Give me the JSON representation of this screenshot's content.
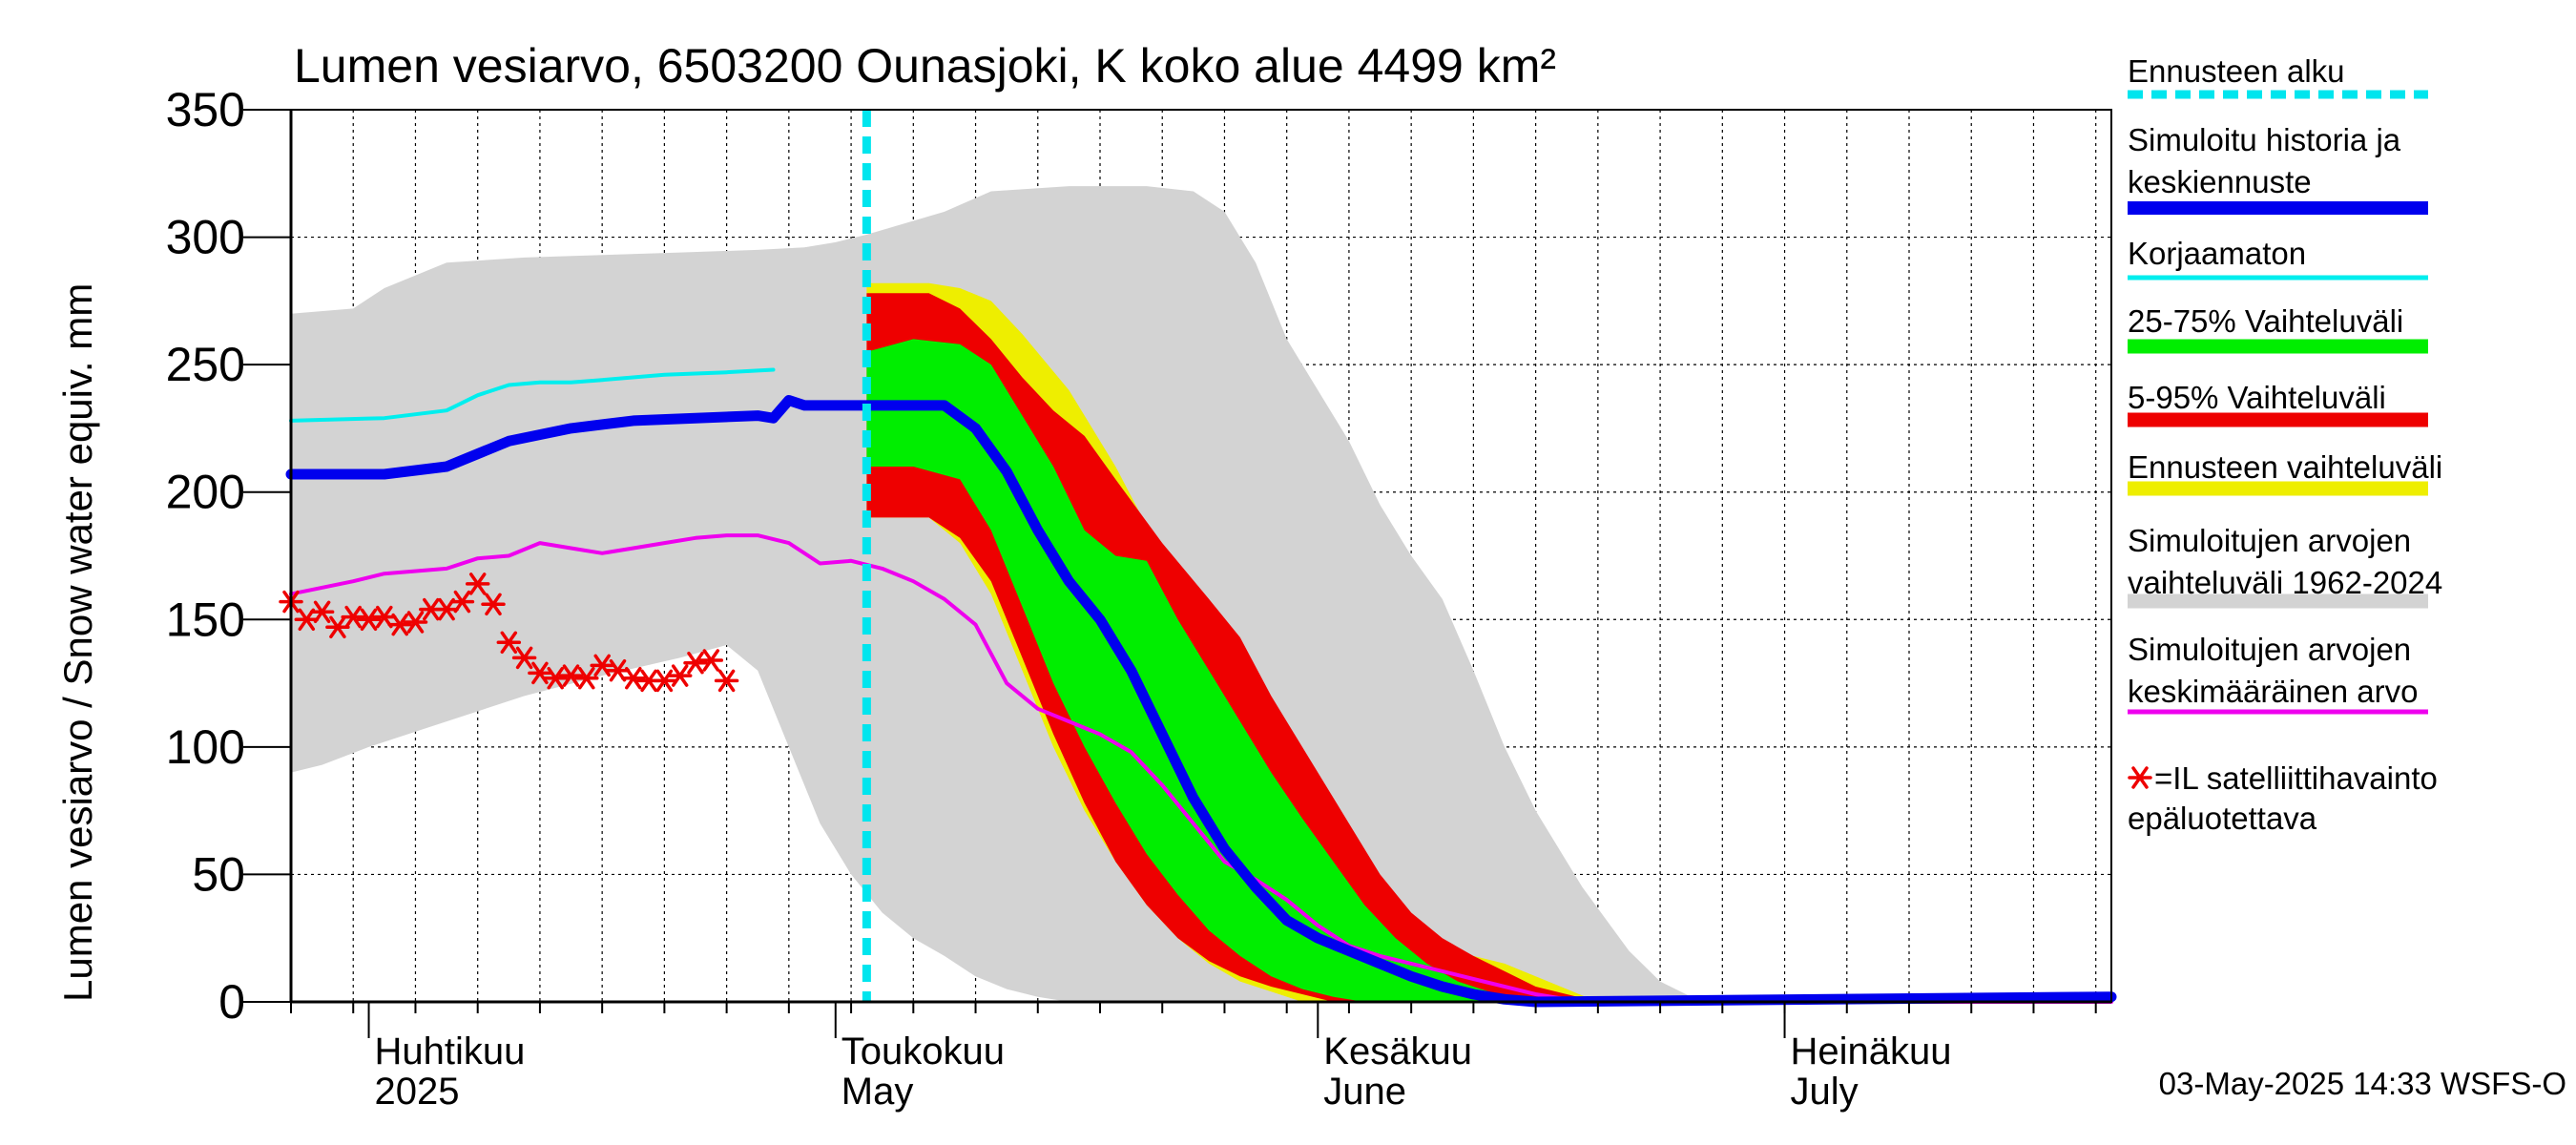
{
  "chart_data": {
    "type": "area",
    "title": "Lumen vesiarvo, 6503200 Ounasjoki, K koko alue 4499 km²",
    "ylabel": "Lumen vesiarvo / Snow water equiv.    mm",
    "ylim": [
      0,
      350
    ],
    "yticks": [
      0,
      50,
      100,
      150,
      200,
      250,
      300,
      350
    ],
    "xlim": [
      0,
      117
    ],
    "x_unit": "days since 2025-03-27",
    "grid": true,
    "month_labels": [
      {
        "x": 5,
        "fi": "Huhtikuu",
        "en": "2025"
      },
      {
        "x": 35,
        "fi": "Toukokuu",
        "en": "May"
      },
      {
        "x": 66,
        "fi": "Kesäkuu",
        "en": "June"
      },
      {
        "x": 96,
        "fi": "Heinäkuu",
        "en": "July"
      }
    ],
    "month_boundaries": [
      5,
      35,
      66,
      96
    ],
    "forecast_start": 37,
    "timestamp": "03-May-2025 14:33 WSFS-O",
    "colors": {
      "forecast_start": "#00e5ee",
      "simulated": "#0000ee",
      "uncorrected": "#00eeee",
      "p25_75": "#00ee00",
      "p5_95": "#ee0000",
      "forecast_range": "#eeee00",
      "historical_range": "#d3d3d3",
      "historical_mean": "#ee00ee",
      "satellite": "#ee0000"
    },
    "legend": [
      {
        "key": "forecast_start",
        "label": [
          "Ennusteen alku"
        ],
        "style": "dashed"
      },
      {
        "key": "simulated",
        "label": [
          "Simuloitu historia ja",
          "keskiennuste"
        ],
        "style": "thick"
      },
      {
        "key": "uncorrected",
        "label": [
          "Korjaamaton"
        ],
        "style": "thin"
      },
      {
        "key": "p25_75",
        "label": [
          "25-75% Vaihteluväli"
        ],
        "style": "band"
      },
      {
        "key": "p5_95",
        "label": [
          "5-95% Vaihteluväli"
        ],
        "style": "band"
      },
      {
        "key": "forecast_range",
        "label": [
          "Ennusteen vaihteluväli"
        ],
        "style": "band"
      },
      {
        "key": "historical_range",
        "label": [
          "Simuloitujen arvojen",
          "vaihteluväli 1962-2024"
        ],
        "style": "band"
      },
      {
        "key": "historical_mean",
        "label": [
          "Simuloitujen arvojen",
          "keskimääräinen arvo"
        ],
        "style": "thin"
      },
      {
        "key": "satellite",
        "label": [
          "=IL satelliittihavainto",
          "epäluotettava"
        ],
        "style": "marker"
      }
    ],
    "series": {
      "historical_range": {
        "upper": [
          [
            0,
            270
          ],
          [
            4,
            272
          ],
          [
            6,
            280
          ],
          [
            10,
            290
          ],
          [
            15,
            292
          ],
          [
            20,
            293
          ],
          [
            25,
            294
          ],
          [
            30,
            295
          ],
          [
            33,
            296
          ],
          [
            35,
            298
          ],
          [
            37,
            301
          ],
          [
            42,
            310
          ],
          [
            45,
            318
          ],
          [
            50,
            320
          ],
          [
            55,
            320
          ],
          [
            58,
            318
          ],
          [
            60,
            310
          ],
          [
            62,
            290
          ],
          [
            64,
            260
          ],
          [
            66,
            240
          ],
          [
            68,
            220
          ],
          [
            70,
            195
          ],
          [
            72,
            175
          ],
          [
            74,
            158
          ],
          [
            76,
            130
          ],
          [
            78,
            100
          ],
          [
            80,
            75
          ],
          [
            83,
            45
          ],
          [
            86,
            20
          ],
          [
            88,
            8
          ],
          [
            90,
            2
          ],
          [
            92,
            0
          ],
          [
            117,
            0
          ]
        ],
        "lower": [
          [
            0,
            90
          ],
          [
            2,
            93
          ],
          [
            5,
            100
          ],
          [
            10,
            110
          ],
          [
            15,
            120
          ],
          [
            20,
            128
          ],
          [
            25,
            135
          ],
          [
            28,
            140
          ],
          [
            30,
            130
          ],
          [
            32,
            100
          ],
          [
            34,
            70
          ],
          [
            36,
            50
          ],
          [
            38,
            35
          ],
          [
            40,
            25
          ],
          [
            42,
            18
          ],
          [
            44,
            10
          ],
          [
            46,
            5
          ],
          [
            48,
            2
          ],
          [
            50,
            0
          ],
          [
            117,
            0
          ]
        ]
      },
      "forecast_range": {
        "upper": [
          [
            37,
            282
          ],
          [
            41,
            282
          ],
          [
            43,
            280
          ],
          [
            45,
            275
          ],
          [
            47,
            262
          ],
          [
            50,
            240
          ],
          [
            53,
            210
          ],
          [
            56,
            175
          ],
          [
            58,
            145
          ],
          [
            60,
            125
          ],
          [
            62,
            108
          ],
          [
            64,
            90
          ],
          [
            66,
            72
          ],
          [
            68,
            50
          ],
          [
            70,
            35
          ],
          [
            72,
            28
          ],
          [
            74,
            22
          ],
          [
            76,
            18
          ],
          [
            78,
            15
          ],
          [
            80,
            10
          ],
          [
            82,
            5
          ],
          [
            84,
            0
          ],
          [
            117,
            0
          ]
        ],
        "lower": [
          [
            37,
            190
          ],
          [
            41,
            190
          ],
          [
            43,
            180
          ],
          [
            45,
            160
          ],
          [
            47,
            130
          ],
          [
            49,
            100
          ],
          [
            51,
            75
          ],
          [
            53,
            55
          ],
          [
            55,
            38
          ],
          [
            57,
            25
          ],
          [
            59,
            15
          ],
          [
            61,
            8
          ],
          [
            63,
            4
          ],
          [
            65,
            0
          ],
          [
            117,
            0
          ]
        ]
      },
      "p5_95": {
        "upper": [
          [
            37,
            278
          ],
          [
            41,
            278
          ],
          [
            43,
            272
          ],
          [
            45,
            260
          ],
          [
            47,
            245
          ],
          [
            49,
            232
          ],
          [
            51,
            222
          ],
          [
            53,
            205
          ],
          [
            56,
            180
          ],
          [
            59,
            158
          ],
          [
            61,
            143
          ],
          [
            63,
            120
          ],
          [
            65,
            100
          ],
          [
            67,
            80
          ],
          [
            68,
            70
          ],
          [
            70,
            50
          ],
          [
            72,
            35
          ],
          [
            74,
            25
          ],
          [
            76,
            18
          ],
          [
            78,
            12
          ],
          [
            80,
            6
          ],
          [
            82,
            3
          ],
          [
            84,
            0
          ],
          [
            117,
            0
          ]
        ],
        "lower": [
          [
            37,
            190
          ],
          [
            41,
            190
          ],
          [
            43,
            182
          ],
          [
            45,
            165
          ],
          [
            47,
            135
          ],
          [
            49,
            105
          ],
          [
            51,
            78
          ],
          [
            53,
            55
          ],
          [
            55,
            38
          ],
          [
            57,
            25
          ],
          [
            59,
            16
          ],
          [
            61,
            10
          ],
          [
            63,
            6
          ],
          [
            65,
            3
          ],
          [
            67,
            0
          ],
          [
            117,
            0
          ]
        ]
      },
      "p25_75": {
        "upper": [
          [
            37,
            255
          ],
          [
            40,
            260
          ],
          [
            43,
            258
          ],
          [
            45,
            250
          ],
          [
            47,
            230
          ],
          [
            49,
            210
          ],
          [
            51,
            185
          ],
          [
            53,
            175
          ],
          [
            55,
            173
          ],
          [
            57,
            150
          ],
          [
            59,
            130
          ],
          [
            61,
            110
          ],
          [
            63,
            90
          ],
          [
            65,
            72
          ],
          [
            67,
            55
          ],
          [
            69,
            38
          ],
          [
            71,
            25
          ],
          [
            73,
            15
          ],
          [
            75,
            8
          ],
          [
            77,
            4
          ],
          [
            79,
            0
          ],
          [
            117,
            0
          ]
        ],
        "lower": [
          [
            37,
            210
          ],
          [
            40,
            210
          ],
          [
            43,
            205
          ],
          [
            45,
            185
          ],
          [
            47,
            155
          ],
          [
            49,
            125
          ],
          [
            51,
            100
          ],
          [
            53,
            78
          ],
          [
            55,
            58
          ],
          [
            57,
            42
          ],
          [
            59,
            28
          ],
          [
            61,
            18
          ],
          [
            63,
            10
          ],
          [
            65,
            5
          ],
          [
            67,
            2
          ],
          [
            69,
            0
          ],
          [
            117,
            0
          ]
        ]
      },
      "simulated": [
        [
          0,
          207
        ],
        [
          6,
          207
        ],
        [
          10,
          210
        ],
        [
          14,
          220
        ],
        [
          18,
          225
        ],
        [
          22,
          228
        ],
        [
          26,
          229
        ],
        [
          30,
          230
        ],
        [
          31,
          229
        ],
        [
          32,
          236
        ],
        [
          33,
          234
        ],
        [
          37,
          234
        ],
        [
          42,
          234
        ],
        [
          44,
          225
        ],
        [
          46,
          208
        ],
        [
          48,
          185
        ],
        [
          50,
          165
        ],
        [
          52,
          150
        ],
        [
          54,
          130
        ],
        [
          56,
          105
        ],
        [
          58,
          80
        ],
        [
          60,
          60
        ],
        [
          62,
          45
        ],
        [
          64,
          32
        ],
        [
          66,
          25
        ],
        [
          68,
          20
        ],
        [
          70,
          15
        ],
        [
          72,
          10
        ],
        [
          74,
          6
        ],
        [
          76,
          3
        ],
        [
          78,
          1
        ],
        [
          80,
          0
        ],
        [
          117,
          2
        ]
      ],
      "uncorrected": [
        [
          0,
          228
        ],
        [
          6,
          229
        ],
        [
          10,
          232
        ],
        [
          12,
          238
        ],
        [
          14,
          242
        ],
        [
          16,
          243
        ],
        [
          18,
          243
        ],
        [
          20,
          244
        ],
        [
          24,
          246
        ],
        [
          28,
          247
        ],
        [
          31,
          248
        ]
      ],
      "historical_mean": [
        [
          0,
          160
        ],
        [
          4,
          165
        ],
        [
          6,
          168
        ],
        [
          10,
          170
        ],
        [
          12,
          174
        ],
        [
          14,
          175
        ],
        [
          16,
          180
        ],
        [
          18,
          178
        ],
        [
          20,
          176
        ],
        [
          22,
          178
        ],
        [
          24,
          180
        ],
        [
          26,
          182
        ],
        [
          28,
          183
        ],
        [
          30,
          183
        ],
        [
          32,
          180
        ],
        [
          34,
          172
        ],
        [
          36,
          173
        ],
        [
          38,
          170
        ],
        [
          40,
          165
        ],
        [
          42,
          158
        ],
        [
          44,
          148
        ],
        [
          46,
          125
        ],
        [
          48,
          115
        ],
        [
          50,
          110
        ],
        [
          52,
          105
        ],
        [
          54,
          98
        ],
        [
          56,
          85
        ],
        [
          58,
          70
        ],
        [
          60,
          55
        ],
        [
          62,
          48
        ],
        [
          64,
          40
        ],
        [
          66,
          30
        ],
        [
          68,
          22
        ],
        [
          70,
          18
        ],
        [
          72,
          15
        ],
        [
          74,
          12
        ],
        [
          76,
          9
        ],
        [
          78,
          6
        ],
        [
          80,
          3
        ],
        [
          82,
          1
        ],
        [
          84,
          0
        ],
        [
          117,
          0
        ]
      ],
      "satellite": [
        [
          0,
          157
        ],
        [
          1,
          150
        ],
        [
          2,
          153
        ],
        [
          3,
          147
        ],
        [
          4,
          151
        ],
        [
          5,
          150
        ],
        [
          6,
          151
        ],
        [
          7,
          148
        ],
        [
          8,
          149
        ],
        [
          9,
          154
        ],
        [
          10,
          154
        ],
        [
          11,
          157
        ],
        [
          12,
          164
        ],
        [
          13,
          156
        ],
        [
          14,
          141
        ],
        [
          15,
          135
        ],
        [
          16,
          129
        ],
        [
          17,
          127
        ],
        [
          18,
          128
        ],
        [
          19,
          127
        ],
        [
          20,
          132
        ],
        [
          21,
          130
        ],
        [
          22,
          127
        ],
        [
          23,
          126
        ],
        [
          24,
          126
        ],
        [
          25,
          128
        ],
        [
          26,
          133
        ],
        [
          27,
          134
        ],
        [
          28,
          126
        ]
      ]
    }
  }
}
